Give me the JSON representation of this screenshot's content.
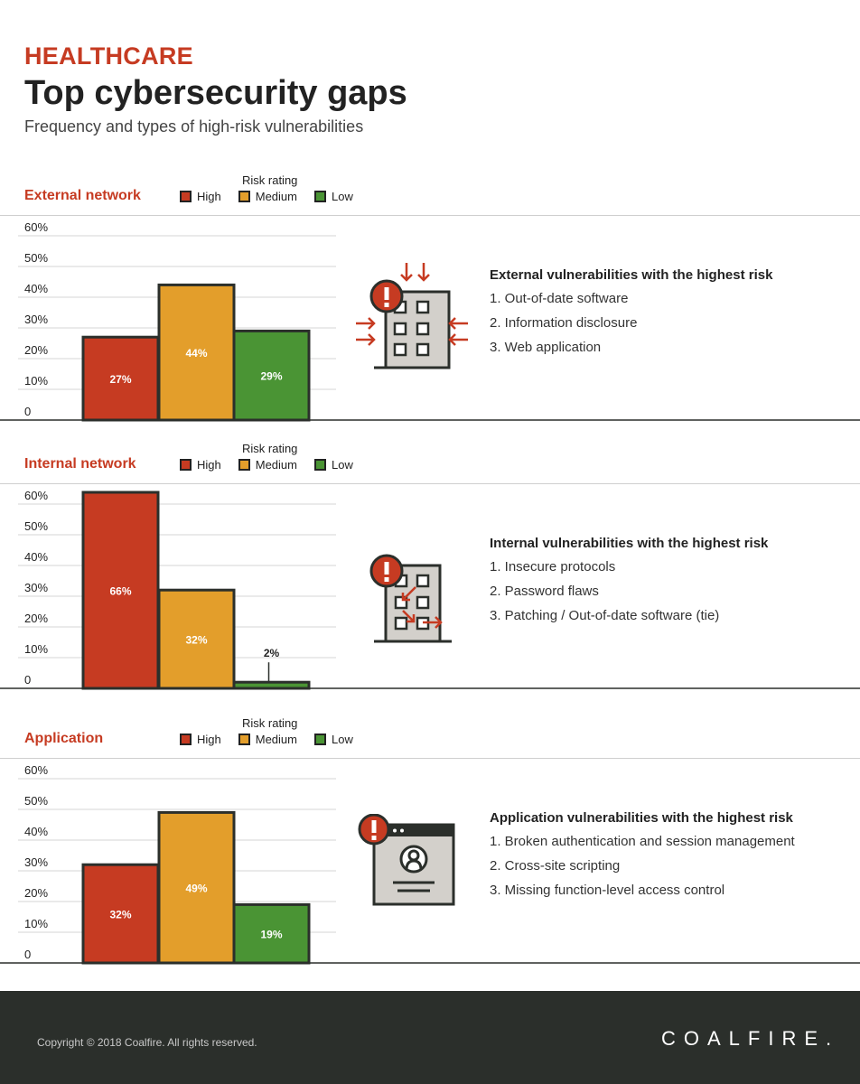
{
  "header": {
    "eyebrow": "HEALTHCARE",
    "title": "Top cybersecurity gaps",
    "subtitle": "Frequency and types of high-risk vulnerabilities"
  },
  "legend": {
    "heading": "Risk rating",
    "items": [
      {
        "label": "High",
        "color": "#c63b22"
      },
      {
        "label": "Medium",
        "color": "#e39e2b"
      },
      {
        "label": "Low",
        "color": "#4a9434"
      }
    ]
  },
  "chart_data": [
    {
      "type": "bar",
      "title": "External network",
      "categories": [
        "High",
        "Medium",
        "Low"
      ],
      "values": [
        27,
        44,
        29
      ],
      "value_labels": [
        "27%",
        "44%",
        "29%"
      ],
      "ylim": [
        0,
        60
      ],
      "yticks": [
        "0",
        "10%",
        "20%",
        "30%",
        "40%",
        "50%",
        "60%"
      ],
      "grid": true
    },
    {
      "type": "bar",
      "title": "Internal network",
      "categories": [
        "High",
        "Medium",
        "Low"
      ],
      "values": [
        66,
        32,
        2
      ],
      "value_labels": [
        "66%",
        "32%",
        "2%"
      ],
      "ylim": [
        0,
        60
      ],
      "yticks": [
        "0",
        "10%",
        "20%",
        "30%",
        "40%",
        "50%",
        "60%"
      ],
      "grid": true
    },
    {
      "type": "bar",
      "title": "Application",
      "categories": [
        "High",
        "Medium",
        "Low"
      ],
      "values": [
        32,
        49,
        19
      ],
      "value_labels": [
        "32%",
        "49%",
        "19%"
      ],
      "ylim": [
        0,
        60
      ],
      "yticks": [
        "0",
        "10%",
        "20%",
        "30%",
        "40%",
        "50%",
        "60%"
      ],
      "grid": true
    }
  ],
  "sections": [
    {
      "list_title": "External vulnerabilities with the highest risk",
      "items": [
        "1. Out-of-date software",
        "2. Information disclosure",
        "3. Web application"
      ],
      "icon": "building-under-attack-icon"
    },
    {
      "list_title": "Internal vulnerabilities with the highest risk",
      "items": [
        "1. Insecure protocols",
        "2. Password flaws",
        "3. Patching / Out-of-date software (tie)"
      ],
      "icon": "building-internal-threat-icon"
    },
    {
      "list_title": "Application vulnerabilities with the highest risk",
      "items": [
        "1. Broken authentication and session management",
        "2. Cross-site scripting",
        "3. Missing function-level access control"
      ],
      "icon": "app-window-user-icon"
    }
  ],
  "footer": {
    "copyright": "Copyright © 2018 Coalfire. All rights reserved.",
    "logo": "COALFIRE."
  }
}
